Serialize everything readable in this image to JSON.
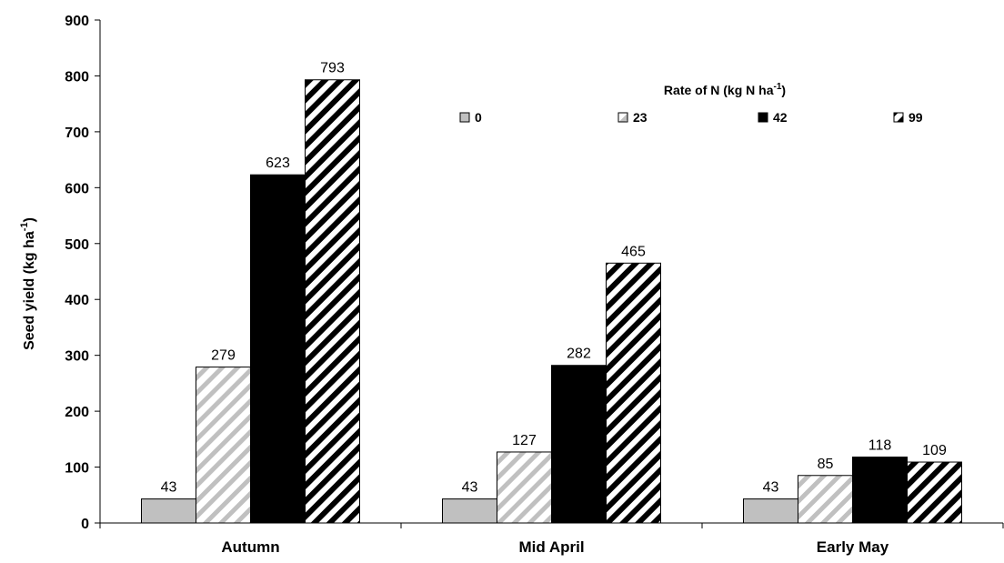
{
  "chart_data": {
    "type": "bar",
    "ylabel": "Seed yield (kg ha",
    "ylabel_sup": "-1",
    "ylabel_end": ")",
    "ylim": [
      0,
      900
    ],
    "yticks": [
      0,
      100,
      200,
      300,
      400,
      500,
      600,
      700,
      800,
      900
    ],
    "categories": [
      "Autumn",
      "Mid April",
      "Early May"
    ],
    "legend": {
      "title": "Rate of N (kg N ha",
      "title_sup": "-1",
      "title_end": ")",
      "placement": "top-right"
    },
    "series": [
      {
        "name": "0",
        "values": [
          43,
          43,
          43
        ],
        "color": "#c0c0c0",
        "pattern": "solid"
      },
      {
        "name": "23",
        "values": [
          279,
          127,
          85
        ],
        "color": "#c0c0c0",
        "pattern": "light-diagonal"
      },
      {
        "name": "42",
        "values": [
          623,
          282,
          118
        ],
        "color": "#000000",
        "pattern": "solid"
      },
      {
        "name": "99",
        "values": [
          793,
          465,
          109
        ],
        "color": "#000000",
        "pattern": "dark-diagonal"
      }
    ],
    "grid": false
  }
}
